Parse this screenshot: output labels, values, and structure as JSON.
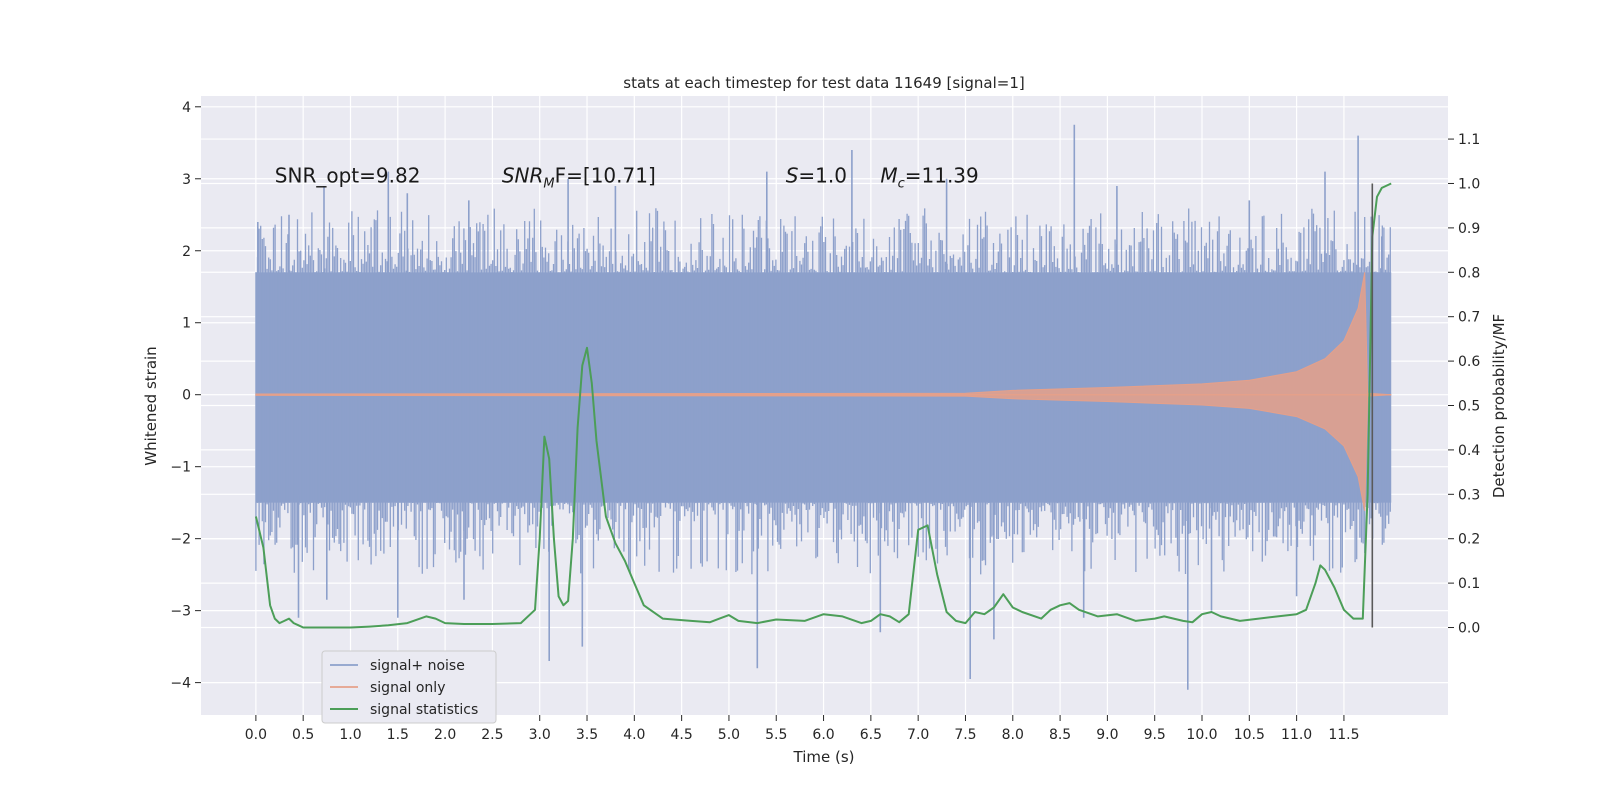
{
  "chart_data": {
    "type": "line",
    "title": "stats at each timestep for test data 11649 [signal=1]",
    "xlabel": "Time (s)",
    "ylabel_left": "Whitened strain",
    "ylabel_right": "Detection probability/MF",
    "xlim": [
      -0.58,
      12.6
    ],
    "ylim_left": [
      -4.45,
      4.15
    ],
    "ylim_right": [
      -0.197,
      1.197
    ],
    "x_ticks": [
      0.0,
      0.5,
      1.0,
      1.5,
      2.0,
      2.5,
      3.0,
      3.5,
      4.0,
      4.5,
      5.0,
      5.5,
      6.0,
      6.5,
      7.0,
      7.5,
      8.0,
      8.5,
      9.0,
      9.5,
      10.0,
      10.5,
      11.0,
      11.5
    ],
    "x_tick_labels": [
      "0.0",
      "0.5",
      "1.0",
      "1.5",
      "2.0",
      "2.5",
      "3.0",
      "3.5",
      "4.0",
      "4.5",
      "5.0",
      "5.5",
      "6.0",
      "6.5",
      "7.0",
      "7.5",
      "8.0",
      "8.5",
      "9.0",
      "9.5",
      "10.0",
      "10.5",
      "11.0",
      "11.5"
    ],
    "y_ticks_left": [
      -4,
      -3,
      -2,
      -1,
      0,
      1,
      2,
      3,
      4
    ],
    "y_tick_labels_left": [
      "−4",
      "−3",
      "−2",
      "−1",
      "0",
      "1",
      "2",
      "3",
      "4"
    ],
    "y_ticks_right": [
      0.0,
      0.1,
      0.2,
      0.3,
      0.4,
      0.5,
      0.6,
      0.7,
      0.8,
      0.9,
      1.0,
      1.1
    ],
    "y_tick_labels_right": [
      "0.0",
      "0.1",
      "0.2",
      "0.3",
      "0.4",
      "0.5",
      "0.6",
      "0.7",
      "0.8",
      "0.9",
      "1.0",
      "1.1"
    ],
    "annotations": [
      {
        "text": "SNR_opt=9.82",
        "x": 0.2,
        "y": 2.95
      },
      {
        "text": "SNR",
        "sub": "M",
        "rest": "F=[10.71]",
        "italic": true,
        "x": 2.6,
        "y": 2.95
      },
      {
        "text": "S",
        "rest": "=1.0",
        "italic": true,
        "x": 5.6,
        "y": 2.95
      },
      {
        "text": "M",
        "sub": "c",
        "rest": "=11.39",
        "italic": true,
        "x": 6.6,
        "y": 2.95
      }
    ],
    "legend": {
      "placement": "lower-left",
      "entries": [
        "signal+ noise",
        "signal only",
        "signal statistics"
      ]
    },
    "series": [
      {
        "name": "signal+ noise",
        "axis": "left",
        "color": "#8da0cb",
        "x_range": [
          0.0,
          12.0
        ],
        "base_range": [
          -1.5,
          1.7
        ],
        "peaks_upper": [
          [
            0.02,
            2.4
          ],
          [
            0.35,
            2.5
          ],
          [
            0.72,
            2.9
          ],
          [
            1.4,
            3.1
          ],
          [
            1.6,
            2.8
          ],
          [
            2.25,
            2.7
          ],
          [
            3.3,
            3.0
          ],
          [
            3.8,
            2.9
          ],
          [
            5.4,
            3.1
          ],
          [
            6.3,
            3.4
          ],
          [
            7.3,
            3.0
          ],
          [
            8.65,
            3.75
          ],
          [
            9.1,
            2.9
          ],
          [
            10.5,
            2.7
          ],
          [
            11.3,
            3.1
          ],
          [
            11.65,
            3.6
          ],
          [
            11.9,
            2.2
          ]
        ],
        "peaks_lower": [
          [
            0.45,
            -3.1
          ],
          [
            0.75,
            -2.85
          ],
          [
            1.5,
            -3.1
          ],
          [
            2.2,
            -2.85
          ],
          [
            3.1,
            -3.7
          ],
          [
            3.45,
            -3.5
          ],
          [
            5.3,
            -3.8
          ],
          [
            6.6,
            -3.3
          ],
          [
            7.55,
            -3.95
          ],
          [
            7.8,
            -3.4
          ],
          [
            8.75,
            -3.1
          ],
          [
            9.85,
            -4.1
          ],
          [
            10.1,
            -3.0
          ],
          [
            11.0,
            -2.8
          ]
        ]
      },
      {
        "name": "signal only",
        "axis": "left",
        "color": "#e5a08a",
        "envelope": [
          [
            0.0,
            0.01
          ],
          [
            7.5,
            0.02
          ],
          [
            8.0,
            0.06
          ],
          [
            9.0,
            0.1
          ],
          [
            10.0,
            0.15
          ],
          [
            10.5,
            0.2
          ],
          [
            11.0,
            0.32
          ],
          [
            11.3,
            0.5
          ],
          [
            11.5,
            0.75
          ],
          [
            11.65,
            1.2
          ],
          [
            11.72,
            1.7
          ],
          [
            11.75,
            0.02
          ],
          [
            12.0,
            0.0
          ]
        ]
      },
      {
        "name": "signal statistics",
        "axis": "right",
        "color": "#4c9e58",
        "x": [
          0.0,
          0.08,
          0.15,
          0.2,
          0.25,
          0.3,
          0.35,
          0.4,
          0.45,
          0.5,
          0.6,
          0.8,
          1.0,
          1.2,
          1.4,
          1.6,
          1.8,
          1.9,
          2.0,
          2.2,
          2.5,
          2.8,
          2.95,
          3.0,
          3.05,
          3.1,
          3.15,
          3.2,
          3.25,
          3.3,
          3.35,
          3.4,
          3.45,
          3.5,
          3.55,
          3.6,
          3.7,
          3.8,
          3.9,
          4.0,
          4.1,
          4.3,
          4.6,
          4.8,
          4.9,
          5.0,
          5.1,
          5.3,
          5.5,
          5.8,
          6.0,
          6.2,
          6.4,
          6.5,
          6.6,
          6.7,
          6.8,
          6.9,
          7.0,
          7.1,
          7.2,
          7.3,
          7.4,
          7.5,
          7.6,
          7.7,
          7.8,
          7.9,
          8.0,
          8.1,
          8.3,
          8.4,
          8.5,
          8.6,
          8.7,
          8.9,
          9.1,
          9.3,
          9.5,
          9.6,
          9.8,
          9.9,
          10.0,
          10.1,
          10.2,
          10.4,
          10.6,
          10.8,
          11.0,
          11.1,
          11.2,
          11.25,
          11.3,
          11.4,
          11.5,
          11.6,
          11.7,
          11.75,
          11.8,
          11.85,
          11.9,
          12.0
        ],
        "y": [
          0.25,
          0.18,
          0.05,
          0.02,
          0.01,
          0.015,
          0.02,
          0.01,
          0.005,
          0.0,
          0.0,
          0.0,
          0.0,
          0.002,
          0.005,
          0.01,
          0.025,
          0.02,
          0.01,
          0.008,
          0.008,
          0.01,
          0.04,
          0.2,
          0.43,
          0.38,
          0.2,
          0.07,
          0.05,
          0.06,
          0.2,
          0.45,
          0.59,
          0.63,
          0.55,
          0.42,
          0.25,
          0.19,
          0.15,
          0.1,
          0.05,
          0.02,
          0.015,
          0.012,
          0.02,
          0.028,
          0.015,
          0.01,
          0.018,
          0.015,
          0.03,
          0.025,
          0.01,
          0.015,
          0.03,
          0.025,
          0.012,
          0.03,
          0.22,
          0.23,
          0.12,
          0.035,
          0.015,
          0.01,
          0.035,
          0.03,
          0.045,
          0.075,
          0.045,
          0.035,
          0.02,
          0.04,
          0.05,
          0.055,
          0.04,
          0.025,
          0.03,
          0.015,
          0.02,
          0.025,
          0.015,
          0.012,
          0.03,
          0.035,
          0.025,
          0.015,
          0.02,
          0.025,
          0.03,
          0.04,
          0.1,
          0.14,
          0.13,
          0.09,
          0.04,
          0.02,
          0.02,
          0.3,
          0.88,
          0.97,
          0.99,
          1.0
        ]
      },
      {
        "name": "",
        "axis": "right",
        "color": "#5a5a5a",
        "vline_x": 11.8,
        "y_range": [
          0.0,
          1.0
        ]
      }
    ]
  }
}
